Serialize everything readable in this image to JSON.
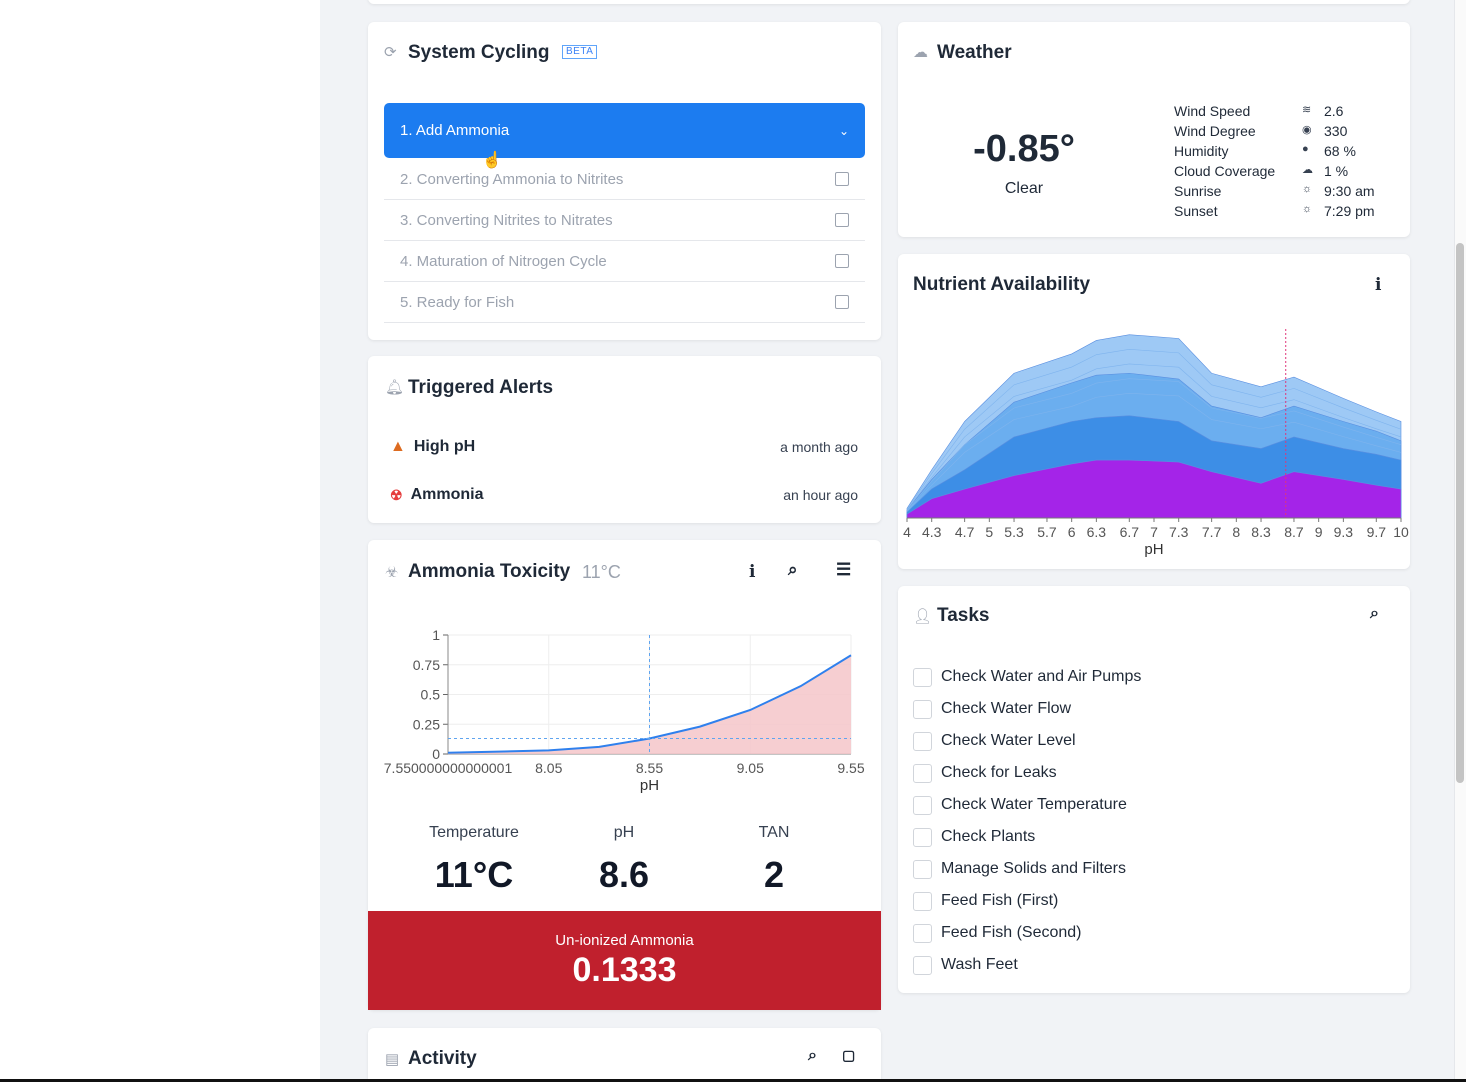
{
  "system_cycling": {
    "title": "System Cycling",
    "badge": "BETA",
    "steps": [
      {
        "label": "1. Add Ammonia",
        "active": true
      },
      {
        "label": "2. Converting Ammonia to Nitrites"
      },
      {
        "label": "3. Converting Nitrites to Nitrates"
      },
      {
        "label": "4. Maturation of Nitrogen Cycle"
      },
      {
        "label": "5. Ready for Fish"
      }
    ]
  },
  "triggered_alerts": {
    "title": "Triggered Alerts",
    "alerts": [
      {
        "name": "High pH",
        "time": "a month ago",
        "icon": "warning-icon"
      },
      {
        "name": "Ammonia",
        "time": "an hour ago",
        "icon": "radiation-icon"
      }
    ]
  },
  "ammonia_toxicity": {
    "title": "Ammonia Toxicity",
    "temp_badge": "11°C",
    "stats": [
      {
        "label": "Temperature",
        "value": "11°C"
      },
      {
        "label": "pH",
        "value": "8.6"
      },
      {
        "label": "TAN",
        "value": "2"
      }
    ],
    "result_label": "Un-ionized Ammonia",
    "result_value": "0.1333"
  },
  "activity": {
    "title": "Activity"
  },
  "weather": {
    "title": "Weather",
    "temperature": "-0.85°",
    "condition": "Clear",
    "details": [
      {
        "label": "Wind Speed",
        "icon": "wind-icon",
        "value": "2.6"
      },
      {
        "label": "Wind Degree",
        "icon": "compass-icon",
        "value": "330"
      },
      {
        "label": "Humidity",
        "icon": "drop-icon",
        "value": "68 %"
      },
      {
        "label": "Cloud Coverage",
        "icon": "cloud-icon",
        "value": "1 %"
      },
      {
        "label": "Sunrise",
        "icon": "sun-icon",
        "value": "9:30 am"
      },
      {
        "label": "Sunset",
        "icon": "sun-icon",
        "value": "7:29 pm"
      }
    ]
  },
  "nutrient": {
    "title": "Nutrient Availability"
  },
  "tasks": {
    "title": "Tasks",
    "items": [
      "Check Water and Air Pumps",
      "Check Water Flow",
      "Check Water Level",
      "Check for Leaks",
      "Check Water Temperature",
      "Check Plants",
      "Manage Solids and Filters",
      "Feed Fish (First)",
      "Feed Fish (Second)",
      "Wash Feet"
    ]
  },
  "chart_data": [
    {
      "type": "area",
      "name": "Ammonia Toxicity",
      "x": [
        7.55,
        7.8,
        8.05,
        8.3,
        8.55,
        8.8,
        9.05,
        9.3,
        9.55
      ],
      "values": [
        0.01,
        0.02,
        0.03,
        0.06,
        0.13,
        0.23,
        0.37,
        0.57,
        0.83
      ],
      "xlabel": "pH",
      "ylabel": "",
      "x_ticks": [
        "7.550000000000001",
        "8.05",
        "8.55",
        "9.05",
        "9.55"
      ],
      "y_ticks": [
        "0",
        "0.25",
        "0.5",
        "0.75",
        "1"
      ],
      "xlim": [
        7.55,
        9.55
      ],
      "ylim": [
        0,
        1
      ],
      "marker": {
        "x": 8.55,
        "y": 0.13
      },
      "colors": {
        "line": "#2f80ed",
        "fill": "#f5c6c9"
      }
    },
    {
      "type": "area",
      "name": "Nutrient Availability",
      "x": [
        4,
        4.3,
        4.7,
        5.3,
        6,
        6.3,
        6.7,
        7.3,
        7.7,
        8.3,
        8.7,
        9.3,
        9.7,
        10
      ],
      "series": [
        {
          "values": [
            0.05,
            0.25,
            0.5,
            0.75,
            0.85,
            0.92,
            0.95,
            0.93,
            0.75,
            0.68,
            0.73,
            0.62,
            0.55,
            0.5
          ]
        },
        {
          "values": [
            0.04,
            0.2,
            0.38,
            0.6,
            0.7,
            0.74,
            0.75,
            0.72,
            0.58,
            0.52,
            0.58,
            0.5,
            0.45,
            0.4
          ]
        },
        {
          "values": [
            0.03,
            0.15,
            0.25,
            0.42,
            0.5,
            0.52,
            0.53,
            0.5,
            0.4,
            0.36,
            0.42,
            0.36,
            0.33,
            0.3
          ]
        },
        {
          "values": [
            0.02,
            0.1,
            0.15,
            0.22,
            0.28,
            0.3,
            0.3,
            0.29,
            0.24,
            0.18,
            0.24,
            0.2,
            0.17,
            0.15
          ]
        }
      ],
      "xlabel": "pH",
      "x_ticks": [
        "4",
        "4.3",
        "4.7",
        "5",
        "5.3",
        "5.7",
        "6",
        "6.3",
        "6.7",
        "7",
        "7.3",
        "7.7",
        "8",
        "8.3",
        "8.7",
        "9",
        "9.3",
        "9.7",
        "10"
      ],
      "xlim": [
        4,
        10
      ],
      "marker": {
        "x": 8.6
      },
      "colors": [
        "#9ec9f5",
        "#6baeef",
        "#3d8ee6",
        "#a424e8"
      ]
    }
  ]
}
